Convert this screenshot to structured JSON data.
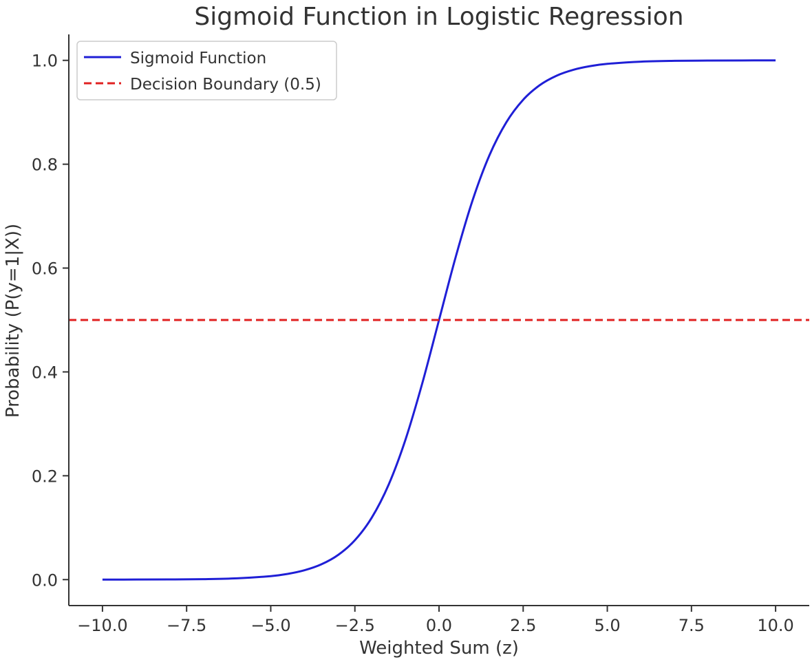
{
  "chart_data": {
    "type": "line",
    "title": "Sigmoid Function in Logistic Regression",
    "xlabel": "Weighted Sum (z)",
    "ylabel": "Probability (P(y=1|X))",
    "xlim": [
      -11.0,
      11.0
    ],
    "ylim": [
      -0.05,
      1.05
    ],
    "x_ticks": [
      -10.0,
      -7.5,
      -5.0,
      -2.5,
      0.0,
      2.5,
      5.0,
      7.5,
      10.0
    ],
    "x_tick_labels": [
      "−10.0",
      "−7.5",
      "−5.0",
      "−2.5",
      "0.0",
      "2.5",
      "5.0",
      "7.5",
      "10.0"
    ],
    "y_ticks": [
      0.0,
      0.2,
      0.4,
      0.6,
      0.8,
      1.0
    ],
    "y_tick_labels": [
      "0.0",
      "0.2",
      "0.4",
      "0.6",
      "0.8",
      "1.0"
    ],
    "grid": false,
    "legend_position": "upper-left",
    "series": [
      {
        "name": "Sigmoid Function",
        "style": "solid",
        "color": "#1f1fd6",
        "x": [
          -10,
          -9,
          -8,
          -7,
          -6,
          -5,
          -4.5,
          -4,
          -3.5,
          -3,
          -2.5,
          -2,
          -1.5,
          -1,
          -0.5,
          0,
          0.5,
          1,
          1.5,
          2,
          2.5,
          3,
          3.5,
          4,
          4.5,
          5,
          6,
          7,
          8,
          9,
          10
        ],
        "values": [
          5e-05,
          0.00012,
          0.00034,
          0.00091,
          0.00247,
          0.00669,
          0.01099,
          0.01799,
          0.02931,
          0.04743,
          0.07586,
          0.1192,
          0.18243,
          0.26894,
          0.37754,
          0.5,
          0.62246,
          0.73106,
          0.81757,
          0.8808,
          0.92414,
          0.95257,
          0.97069,
          0.98201,
          0.98901,
          0.99331,
          0.99753,
          0.99909,
          0.99966,
          0.99988,
          0.99995
        ]
      },
      {
        "name": "Decision Boundary (0.5)",
        "style": "dashed",
        "color": "#e02020",
        "x": [
          -11.0,
          11.0
        ],
        "values": [
          0.5,
          0.5
        ]
      }
    ]
  }
}
